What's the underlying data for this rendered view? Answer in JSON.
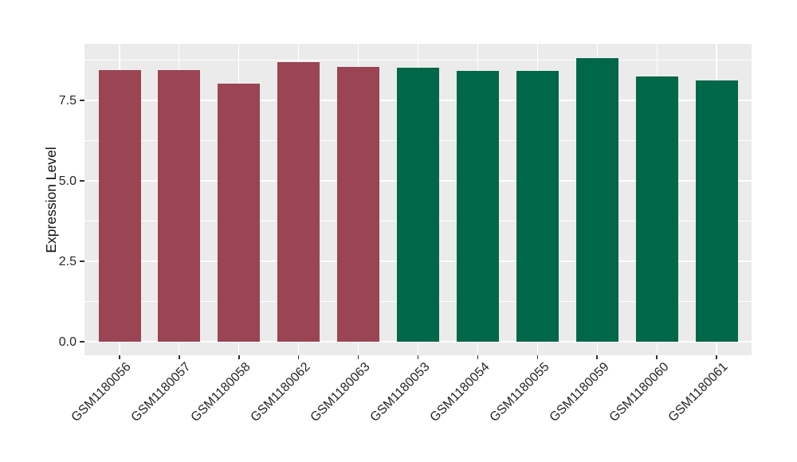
{
  "chart_data": {
    "type": "bar",
    "ylabel": "Expression Level",
    "categories": [
      "GSM1180056",
      "GSM1180057",
      "GSM1180058",
      "GSM1180062",
      "GSM1180063",
      "GSM1180053",
      "GSM1180054",
      "GSM1180055",
      "GSM1180059",
      "GSM1180060",
      "GSM1180061"
    ],
    "values": [
      8.45,
      8.45,
      8.02,
      8.68,
      8.54,
      8.52,
      8.42,
      8.42,
      8.8,
      8.24,
      8.13
    ],
    "bar_groups": [
      "A",
      "A",
      "A",
      "A",
      "A",
      "B",
      "B",
      "B",
      "B",
      "B",
      "B"
    ],
    "group_colors": {
      "A": "#9A4454",
      "B": "#006748"
    },
    "yticks": [
      0.0,
      2.5,
      5.0,
      7.5
    ],
    "ytick_labels": [
      "0.0",
      "2.5",
      "5.0",
      "7.5"
    ],
    "minor_gridlines": [
      1.25,
      3.75,
      6.25,
      8.75
    ],
    "ylim": [
      0,
      9.26
    ],
    "grid": true,
    "legend": false,
    "panel_background": "#EBEBEB",
    "gridline_color": "#FFFFFF",
    "tick_mark_color": "#333333",
    "text_color": "#262626"
  }
}
